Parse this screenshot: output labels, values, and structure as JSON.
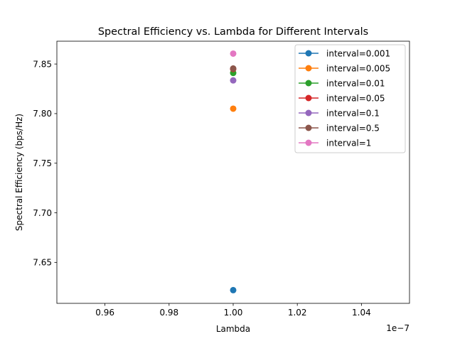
{
  "chart_data": {
    "type": "scatter",
    "title": "Spectral Efficiency vs. Lambda for Different Intervals",
    "xlabel": "Lambda",
    "ylabel": "Spectral Efficiency (bps/Hz)",
    "x_offset_label": "1e−7",
    "xlim": [
      0.945,
      1.055
    ],
    "ylim": [
      7.6087,
      7.873
    ],
    "x_ticks": [
      {
        "value": 0.96,
        "label": "0.96"
      },
      {
        "value": 0.98,
        "label": "0.98"
      },
      {
        "value": 1.0,
        "label": "1.00"
      },
      {
        "value": 1.02,
        "label": "1.02"
      },
      {
        "value": 1.04,
        "label": "1.04"
      }
    ],
    "y_ticks": [
      {
        "value": 7.65,
        "label": "7.65"
      },
      {
        "value": 7.7,
        "label": "7.70"
      },
      {
        "value": 7.75,
        "label": "7.75"
      },
      {
        "value": 7.8,
        "label": "7.80"
      },
      {
        "value": 7.85,
        "label": "7.85"
      }
    ],
    "grid": false,
    "legend_position": "top-right",
    "series": [
      {
        "name": "interval=0.001",
        "color": "#1f77b4",
        "x": [
          1.0
        ],
        "y": [
          7.622
        ]
      },
      {
        "name": "interval=0.005",
        "color": "#ff7f0e",
        "x": [
          1.0
        ],
        "y": [
          7.805
        ]
      },
      {
        "name": "interval=0.01",
        "color": "#2ca02c",
        "x": [
          1.0
        ],
        "y": [
          7.841
        ]
      },
      {
        "name": "interval=0.05",
        "color": "#d62728",
        "x": [
          1.0
        ],
        "y": [
          7.845
        ]
      },
      {
        "name": "interval=0.1",
        "color": "#9467bd",
        "x": [
          1.0
        ],
        "y": [
          7.8335
        ]
      },
      {
        "name": "interval=0.5",
        "color": "#8c564b",
        "x": [
          1.0
        ],
        "y": [
          7.8455
        ]
      },
      {
        "name": "interval=1",
        "color": "#e377c2",
        "x": [
          1.0
        ],
        "y": [
          7.8605
        ]
      }
    ]
  }
}
